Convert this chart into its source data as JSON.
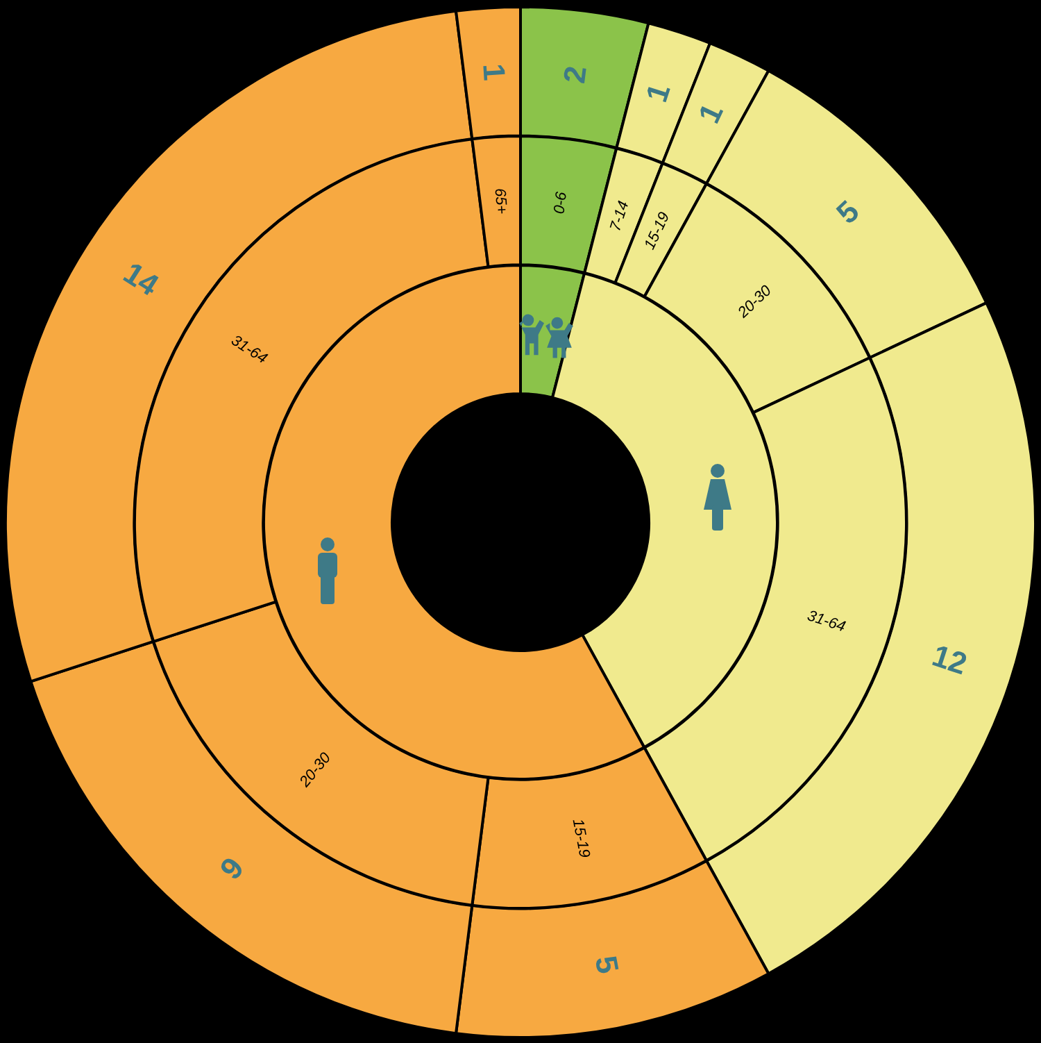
{
  "chart_data": [
    {
      "type": "donut",
      "categories": [
        null,
        null,
        null,
        null,
        null,
        null,
        null,
        null,
        null
      ],
      "values": [
        2,
        1,
        1,
        5,
        12,
        5,
        9,
        14,
        1
      ],
      "colors": [
        "#8bc34a",
        "#f0ea8e",
        "#f0ea8e",
        "#f0ea8e",
        "#f0ea8e",
        "#f7a941",
        "#f7a941",
        "#f7a941",
        "#f7a941"
      ],
      "data_labels": true
    },
    {
      "type": "donut",
      "categories": [
        "0-6",
        "7-14",
        "15-19",
        "20-30",
        "31-64",
        "15-19",
        "20-30",
        "31-64",
        "65+"
      ],
      "values": [
        4,
        2,
        2,
        10,
        24,
        10,
        18,
        28,
        2
      ],
      "colors": [
        "#8bc34a",
        "#f0ea8e",
        "#f0ea8e",
        "#f0ea8e",
        "#f0ea8e",
        "#f7a941",
        "#f7a941",
        "#f7a941",
        "#f7a941"
      ]
    },
    {
      "type": "donut",
      "categories": [
        null,
        null,
        null
      ],
      "values": [
        4,
        38,
        58
      ],
      "colors": [
        "#8bc34a",
        "#f0ea8e",
        "#f7a941"
      ]
    }
  ]
}
